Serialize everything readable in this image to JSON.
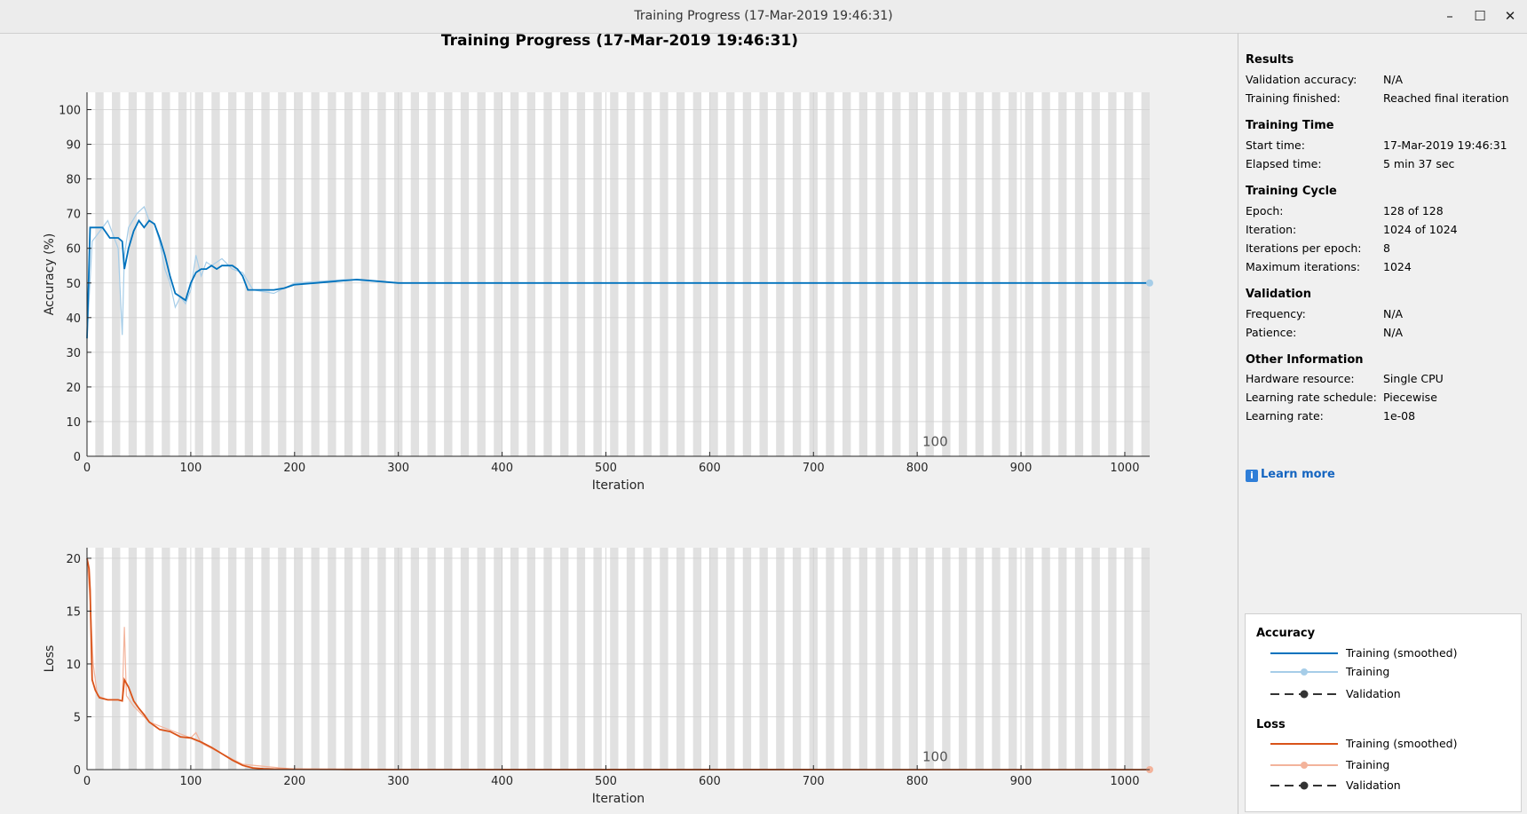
{
  "window": {
    "title": "Training Progress (17-Mar-2019 19:46:31)",
    "minimize": "–",
    "maximize": "☐",
    "close": "✕"
  },
  "figure_title": "Training Progress (17-Mar-2019 19:46:31)",
  "colors": {
    "acc_smooth": "#0072bd",
    "acc_raw": "#a6cde8",
    "loss_smooth": "#d95319",
    "loss_raw": "#f3b39b",
    "epoch_band": "#e1e1e1"
  },
  "chart_data": [
    {
      "type": "line",
      "title": "",
      "xlabel": "Iteration",
      "ylabel": "Accuracy (%)",
      "xlim": [
        0,
        1024
      ],
      "ylim": [
        0,
        105
      ],
      "xticks": [
        0,
        100,
        200,
        300,
        400,
        500,
        600,
        700,
        800,
        900,
        1000
      ],
      "yticks": [
        0,
        10,
        20,
        30,
        40,
        50,
        60,
        70,
        80,
        90,
        100
      ],
      "annotation": {
        "text": "100",
        "x": 805,
        "y": 3
      },
      "grid": true,
      "series": [
        {
          "name": "Training (smoothed)",
          "x": [
            0,
            3,
            10,
            15,
            22,
            30,
            34,
            36,
            40,
            45,
            50,
            55,
            60,
            65,
            70,
            75,
            80,
            85,
            90,
            95,
            100,
            105,
            110,
            115,
            120,
            125,
            130,
            135,
            140,
            145,
            150,
            155,
            160,
            170,
            180,
            190,
            200,
            220,
            240,
            260,
            280,
            300,
            350,
            400,
            450,
            500,
            600,
            700,
            800,
            900,
            1024
          ],
          "y": [
            34,
            66,
            66,
            66,
            63,
            63,
            62,
            54,
            60,
            65,
            68,
            66,
            68,
            67,
            63,
            58,
            52,
            47,
            46,
            45,
            50,
            53,
            54,
            54,
            55,
            54,
            55,
            55,
            55,
            54,
            52,
            48,
            48,
            48,
            48,
            48.5,
            49.5,
            50,
            50.5,
            51,
            50.5,
            50,
            50,
            50,
            50,
            50,
            50,
            50,
            50,
            50,
            50
          ]
        },
        {
          "name": "Training",
          "x": [
            0,
            5,
            10,
            20,
            30,
            34,
            36,
            40,
            48,
            55,
            60,
            65,
            70,
            75,
            80,
            85,
            90,
            95,
            100,
            105,
            110,
            115,
            120,
            130,
            140,
            150,
            160,
            180,
            200,
            250,
            300,
            400,
            500,
            600,
            700,
            800,
            900,
            1024
          ],
          "y": [
            34,
            62,
            64,
            68,
            60,
            35,
            58,
            66,
            70,
            72,
            68,
            67,
            62,
            54,
            50,
            43,
            46,
            44,
            48,
            58,
            52,
            56,
            55,
            57,
            54,
            53,
            48,
            47,
            50,
            51,
            50,
            50,
            50,
            50,
            50,
            50,
            50,
            50
          ]
        }
      ],
      "legend": [
        "Training (smoothed)",
        "Training",
        "Validation"
      ]
    },
    {
      "type": "line",
      "title": "",
      "xlabel": "Iteration",
      "ylabel": "Loss",
      "xlim": [
        0,
        1024
      ],
      "ylim": [
        0,
        21
      ],
      "xticks": [
        0,
        100,
        200,
        300,
        400,
        500,
        600,
        700,
        800,
        900,
        1000
      ],
      "yticks": [
        0,
        5,
        10,
        15,
        20
      ],
      "annotation": {
        "text": "100",
        "x": 805,
        "y": 0.8
      },
      "grid": true,
      "series": [
        {
          "name": "Training (smoothed)",
          "x": [
            0,
            2,
            3,
            5,
            8,
            12,
            20,
            30,
            34,
            36,
            40,
            45,
            50,
            55,
            60,
            70,
            80,
            90,
            100,
            110,
            120,
            130,
            140,
            150,
            160,
            170,
            180,
            200,
            250,
            300,
            1024
          ],
          "y": [
            20,
            19,
            17,
            8.5,
            7.5,
            6.8,
            6.6,
            6.6,
            6.5,
            8.5,
            7.8,
            6.5,
            5.8,
            5.2,
            4.5,
            3.8,
            3.6,
            3.1,
            3,
            2.6,
            2.1,
            1.5,
            0.9,
            0.4,
            0.15,
            0.08,
            0.05,
            0.03,
            0.02,
            0.01,
            0
          ]
        },
        {
          "name": "Training",
          "x": [
            0,
            3,
            6,
            10,
            20,
            30,
            34,
            36,
            38,
            45,
            60,
            100,
            105,
            110,
            150,
            200,
            300,
            1024
          ],
          "y": [
            20,
            16,
            10,
            7,
            6.6,
            6.6,
            6.5,
            13.5,
            7,
            6,
            4.5,
            3,
            3.5,
            2.5,
            0.5,
            0.03,
            0.01,
            0
          ]
        }
      ],
      "legend": [
        "Training (smoothed)",
        "Training",
        "Validation"
      ]
    }
  ],
  "panel": {
    "results": {
      "heading": "Results",
      "rows": [
        {
          "label": "Validation accuracy:",
          "value": "N/A"
        },
        {
          "label": "Training finished:",
          "value": "Reached final iteration"
        }
      ]
    },
    "time": {
      "heading": "Training Time",
      "rows": [
        {
          "label": "Start time:",
          "value": "17-Mar-2019 19:46:31"
        },
        {
          "label": "Elapsed time:",
          "value": "5 min 37 sec"
        }
      ]
    },
    "cycle": {
      "heading": "Training Cycle",
      "rows": [
        {
          "label": "Epoch:",
          "value": "128 of 128"
        },
        {
          "label": "Iteration:",
          "value": "1024 of 1024"
        },
        {
          "label": "Iterations per epoch:",
          "value": "8"
        },
        {
          "label": "Maximum iterations:",
          "value": "1024"
        }
      ]
    },
    "validation": {
      "heading": "Validation",
      "rows": [
        {
          "label": "Frequency:",
          "value": "N/A"
        },
        {
          "label": "Patience:",
          "value": "N/A"
        }
      ]
    },
    "other": {
      "heading": "Other Information",
      "rows": [
        {
          "label": "Hardware resource:",
          "value": "Single CPU"
        },
        {
          "label": "Learning rate schedule:",
          "value": "Piecewise"
        },
        {
          "label": "Learning rate:",
          "value": "1e-08"
        }
      ]
    },
    "learn_more": "Learn more",
    "info_glyph": "i"
  },
  "legend": {
    "accuracy_heading": "Accuracy",
    "loss_heading": "Loss",
    "items": [
      "Training (smoothed)",
      "Training",
      "Validation"
    ]
  }
}
